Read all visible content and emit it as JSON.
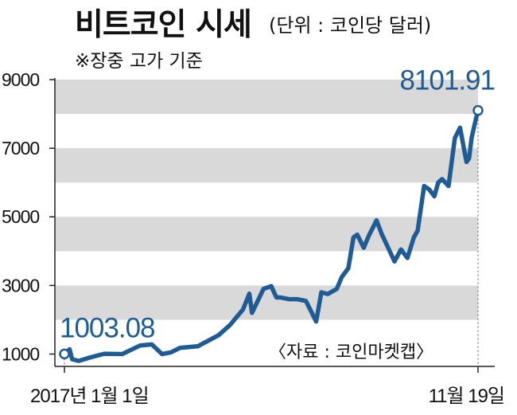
{
  "header": {
    "title": "비트코인 시세",
    "unit": "(단위 : 코인당 달러)",
    "note": "※장중 고가 기준"
  },
  "source": "〈자료 : 코인마켓캡〉",
  "colors": {
    "line": "#1f5b95",
    "band": "#d9d9d9",
    "label": "#1f5b95"
  },
  "chart_data": {
    "type": "line",
    "title": "비트코인 시세",
    "unit": "(단위 : 코인당 달러)",
    "xlabel": "",
    "ylabel": "",
    "x_tick_labels": [
      "2017년 1월 1일",
      "11월 19일"
    ],
    "y_ticks": [
      1000,
      3000,
      5000,
      7000,
      9000
    ],
    "ylim": [
      640,
      9000
    ],
    "xlim": [
      "2017-01-01",
      "2017-11-19"
    ],
    "grid": "alternating horizontal bands",
    "series": [
      {
        "name": "",
        "x": [
          "2017-01-01",
          "2017-01-05",
          "2017-01-07",
          "2017-01-12",
          "2017-01-20",
          "2017-02-01",
          "2017-02-15",
          "2017-03-01",
          "2017-03-10",
          "2017-03-18",
          "2017-03-25",
          "2017-04-01",
          "2017-04-15",
          "2017-05-01",
          "2017-05-10",
          "2017-05-20",
          "2017-05-25",
          "2017-05-27",
          "2017-06-05",
          "2017-06-11",
          "2017-06-15",
          "2017-06-18",
          "2017-06-25",
          "2017-07-01",
          "2017-07-08",
          "2017-07-16",
          "2017-07-20",
          "2017-07-25",
          "2017-08-01",
          "2017-08-05",
          "2017-08-10",
          "2017-08-14",
          "2017-08-17",
          "2017-08-22",
          "2017-08-26",
          "2017-09-01",
          "2017-09-05",
          "2017-09-10",
          "2017-09-15",
          "2017-09-20",
          "2017-09-25",
          "2017-09-30",
          "2017-10-03",
          "2017-10-08",
          "2017-10-12",
          "2017-10-16",
          "2017-10-19",
          "2017-10-22",
          "2017-10-27",
          "2017-11-01",
          "2017-11-05",
          "2017-11-08",
          "2017-11-10",
          "2017-11-12",
          "2017-11-14",
          "2017-11-17",
          "2017-11-19"
        ],
        "values": [
          1003.08,
          1140,
          850,
          800,
          890,
          1010,
          1000,
          1250,
          1280,
          1000,
          1050,
          1180,
          1230,
          1550,
          1850,
          2300,
          2760,
          2200,
          2900,
          2980,
          2650,
          2650,
          2600,
          2600,
          2550,
          1950,
          2800,
          2750,
          2900,
          3250,
          3500,
          4400,
          4480,
          4100,
          4450,
          4900,
          4500,
          4100,
          3700,
          4050,
          3800,
          4400,
          4600,
          5900,
          5800,
          5600,
          6000,
          6100,
          5900,
          7300,
          7600,
          7000,
          6600,
          6700,
          7300,
          7800,
          8101.91
        ]
      }
    ],
    "annotations": [
      {
        "x": "2017-01-01",
        "y": 1003.08,
        "label": "1003.08"
      },
      {
        "x": "2017-11-19",
        "y": 8101.91,
        "label": "8101.91"
      }
    ]
  }
}
